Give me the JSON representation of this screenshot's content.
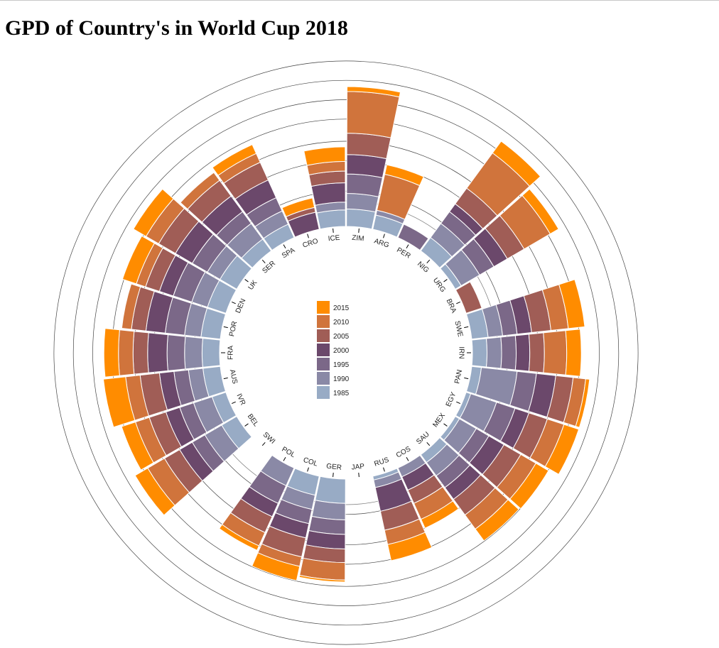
{
  "title": "GPD of Country's in World Cup 2018",
  "chart_data": {
    "type": "radial-stacked-bar",
    "years": [
      "1985",
      "1990",
      "1995",
      "2000",
      "2005",
      "2010",
      "2015"
    ],
    "colors": {
      "1985": "#98abc5",
      "1990": "#8a89a6",
      "1995": "#7b6888",
      "2000": "#6b486b",
      "2005": "#a05d56",
      "2010": "#d0743c",
      "2015": "#ff8c00"
    },
    "legend_order": [
      "2015",
      "2010",
      "2005",
      "2000",
      "1995",
      "1990",
      "1985"
    ],
    "countries": [
      {
        "code": "ZIM",
        "values": [
          0.36,
          0.32,
          0.4,
          0.4,
          0.44,
          0.86,
          0.1
        ]
      },
      {
        "code": "ARG",
        "values": [
          0.3,
          0.1,
          0.0,
          0.0,
          0.0,
          0.76,
          0.2
        ]
      },
      {
        "code": "PER",
        "values": [
          0.0,
          0.0,
          0.3,
          0.0,
          0.0,
          0.0,
          0.0
        ]
      },
      {
        "code": "NIG",
        "values": [
          0.34,
          0.36,
          0.3,
          0.2,
          0.4,
          0.9,
          0.3
        ]
      },
      {
        "code": "URG",
        "values": [
          0.14,
          0.44,
          0.34,
          0.32,
          0.4,
          0.62,
          0.2
        ]
      },
      {
        "code": "BRA",
        "values": [
          0.0,
          0.0,
          0.0,
          0.0,
          0.34,
          0.0,
          0.0
        ]
      },
      {
        "code": "SWE",
        "values": [
          0.34,
          0.3,
          0.3,
          0.3,
          0.4,
          0.36,
          0.34
        ]
      },
      {
        "code": "IRN",
        "values": [
          0.3,
          0.3,
          0.3,
          0.28,
          0.3,
          0.46,
          0.3
        ]
      },
      {
        "code": "PAN",
        "values": [
          0.2,
          0.74,
          0.4,
          0.4,
          0.36,
          0.26,
          0.08
        ]
      },
      {
        "code": "EGY",
        "values": [
          0.1,
          0.56,
          0.4,
          0.3,
          0.4,
          0.36,
          0.32
        ]
      },
      {
        "code": "MEX",
        "values": [
          0.1,
          0.4,
          0.3,
          0.36,
          0.4,
          0.36,
          0.3
        ]
      },
      {
        "code": "SAU",
        "values": [
          0.2,
          0.34,
          0.3,
          0.3,
          0.4,
          0.36,
          0.3
        ]
      },
      {
        "code": "COS",
        "values": [
          0.0,
          0.2,
          0.0,
          0.3,
          0.3,
          0.36,
          0.2
        ]
      },
      {
        "code": "RUS",
        "values": [
          0.08,
          0.16,
          0.0,
          0.5,
          0.4,
          0.3,
          0.34
        ]
      },
      {
        "code": "JAP",
        "values": [
          0.0,
          0.0,
          0.0,
          0.0,
          0.0,
          0.0,
          0.0
        ]
      },
      {
        "code": "GER",
        "values": [
          0.5,
          0.34,
          0.3,
          0.3,
          0.28,
          0.36,
          0.04
        ]
      },
      {
        "code": "COL",
        "values": [
          0.4,
          0.3,
          0.3,
          0.3,
          0.4,
          0.2,
          0.3
        ]
      },
      {
        "code": "POL",
        "values": [
          0.0,
          0.4,
          0.4,
          0.3,
          0.36,
          0.3,
          0.1
        ]
      },
      {
        "code": "SWI",
        "values": [
          0.0,
          0.0,
          0.0,
          0.0,
          0.0,
          0.0,
          0.0
        ]
      },
      {
        "code": "BEL",
        "values": [
          0.36,
          0.4,
          0.3,
          0.3,
          0.36,
          0.4,
          0.3
        ]
      },
      {
        "code": "IVR",
        "values": [
          0.3,
          0.4,
          0.3,
          0.3,
          0.36,
          0.3,
          0.3
        ]
      },
      {
        "code": "AUS",
        "values": [
          0.36,
          0.3,
          0.3,
          0.3,
          0.4,
          0.3,
          0.46
        ]
      },
      {
        "code": "FRA",
        "values": [
          0.36,
          0.36,
          0.36,
          0.4,
          0.3,
          0.3,
          0.3
        ]
      },
      {
        "code": "POR",
        "values": [
          0.4,
          0.34,
          0.4,
          0.4,
          0.3,
          0.2,
          0.0
        ]
      },
      {
        "code": "DEN",
        "values": [
          0.4,
          0.34,
          0.4,
          0.3,
          0.3,
          0.2,
          0.3
        ]
      },
      {
        "code": "UK",
        "values": [
          0.4,
          0.3,
          0.36,
          0.4,
          0.4,
          0.3,
          0.3
        ]
      },
      {
        "code": "SER",
        "values": [
          0.3,
          0.4,
          0.3,
          0.4,
          0.4,
          0.2,
          0.0
        ]
      },
      {
        "code": "SPA",
        "values": [
          0.3,
          0.3,
          0.3,
          0.4,
          0.4,
          0.2,
          0.2
        ]
      },
      {
        "code": "CRO",
        "values": [
          0.0,
          0.0,
          0.0,
          0.36,
          0.1,
          0.0,
          0.2
        ]
      },
      {
        "code": "ICE",
        "values": [
          0.34,
          0.16,
          0.0,
          0.4,
          0.24,
          0.2,
          0.3
        ]
      }
    ]
  }
}
